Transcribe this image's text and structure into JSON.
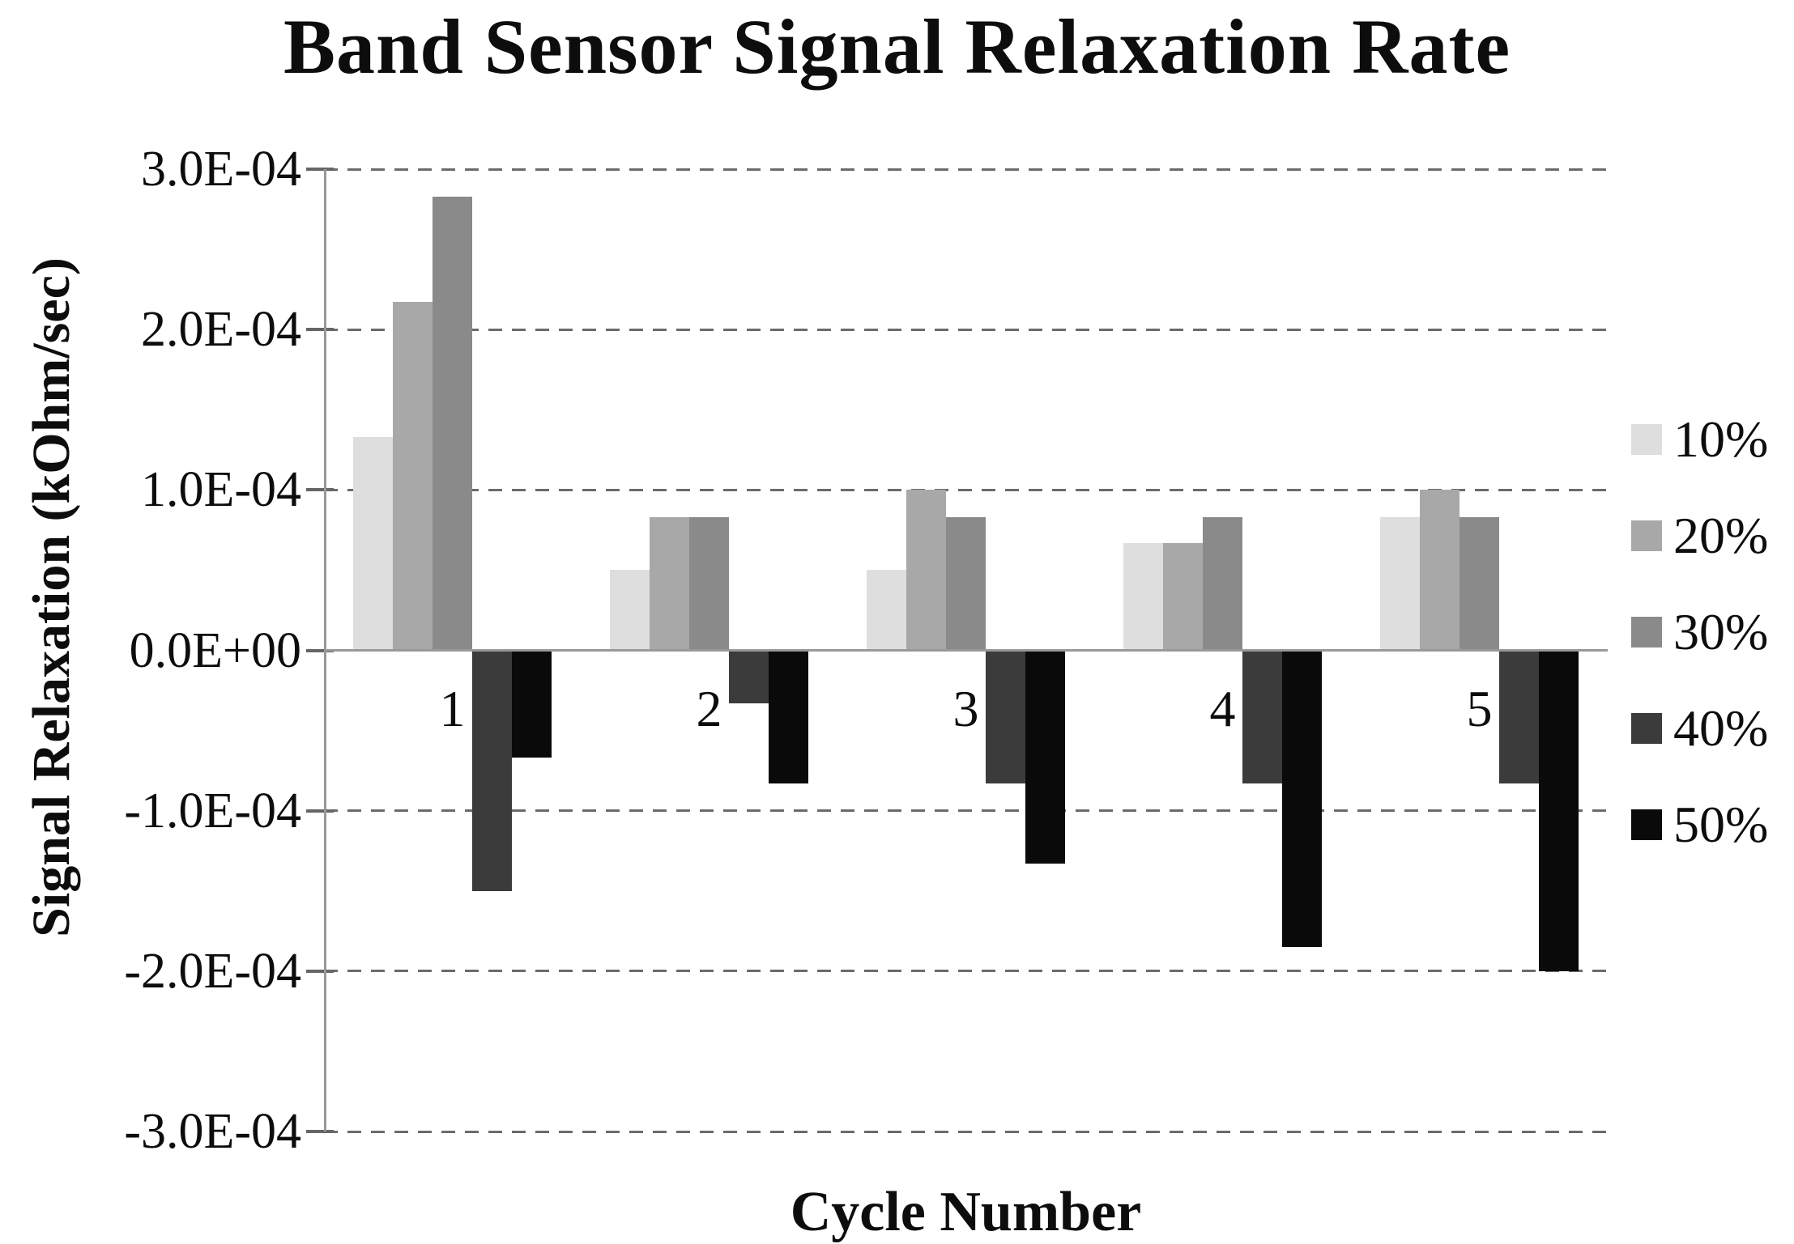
{
  "chart_data": {
    "type": "bar",
    "title": "Band Sensor Signal Relaxation Rate",
    "xlabel": "Cycle Number",
    "ylabel": "Signal Relaxation (kOhm/sec)",
    "categories": [
      "1",
      "2",
      "3",
      "4",
      "5"
    ],
    "series": [
      {
        "name": "10%",
        "color": "#dedede",
        "values": [
          0.000133,
          5e-05,
          5e-05,
          6.7e-05,
          8.3e-05
        ]
      },
      {
        "name": "20%",
        "color": "#a8a8a8",
        "values": [
          0.000217,
          8.3e-05,
          0.0001,
          6.7e-05,
          0.0001
        ]
      },
      {
        "name": "30%",
        "color": "#8a8a8a",
        "values": [
          0.000283,
          8.3e-05,
          8.3e-05,
          8.3e-05,
          8.3e-05
        ]
      },
      {
        "name": "40%",
        "color": "#3b3b3b",
        "values": [
          -0.00015,
          -3.3e-05,
          -8.3e-05,
          -8.3e-05,
          -8.3e-05
        ]
      },
      {
        "name": "50%",
        "color": "#0a0a0a",
        "values": [
          -6.7e-05,
          -8.3e-05,
          -0.000133,
          -0.000185,
          -0.0002
        ]
      }
    ],
    "ylim": [
      -0.0003,
      0.0003
    ],
    "yticks": [
      {
        "value": 0.0003,
        "label": "3.0E-04"
      },
      {
        "value": 0.0002,
        "label": "2.0E-04"
      },
      {
        "value": 0.0001,
        "label": "1.0E-04"
      },
      {
        "value": 0,
        "label": "0.0E+00"
      },
      {
        "value": -0.0001,
        "label": "-1.0E-04"
      },
      {
        "value": -0.0002,
        "label": "-2.0E-04"
      },
      {
        "value": -0.0003,
        "label": "-3.0E-04"
      }
    ],
    "grid": "horizontal-dashed",
    "legend_position": "right",
    "axis_color": "#999999",
    "grid_color": "#6b6b6b"
  }
}
